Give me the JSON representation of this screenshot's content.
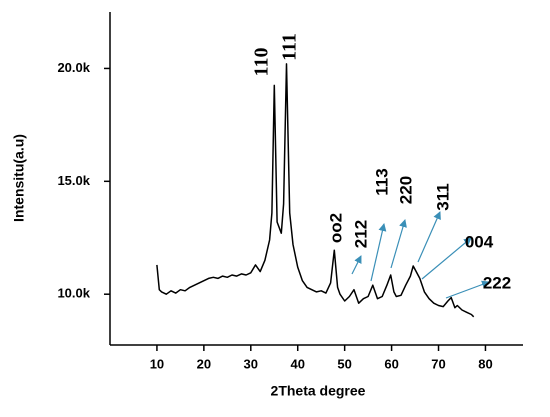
{
  "chart_data": {
    "type": "line",
    "x_label": "2Theta degree",
    "y_label": "Intensitu(a.u)",
    "xlim": [
      0,
      88
    ],
    "ylim": [
      7750,
      22500
    ],
    "xticks": [
      10,
      20,
      30,
      40,
      50,
      60,
      70,
      80
    ],
    "yticks": [
      {
        "value": 10000,
        "label": "10.0k"
      },
      {
        "value": 15000,
        "label": "15.0k"
      },
      {
        "value": 20000,
        "label": "20.0k"
      }
    ],
    "color": "#000000",
    "annotation_color": "#3a8fb7",
    "x": [
      10,
      10.5,
      11,
      12,
      13,
      14,
      15,
      16,
      17,
      18,
      19,
      20,
      21,
      22,
      23,
      24,
      25,
      26,
      27,
      28,
      29,
      30,
      31,
      32,
      33,
      34,
      34.5,
      35,
      35.6,
      36.5,
      37,
      37.6,
      38.3,
      39,
      40,
      41,
      42,
      43,
      44,
      45,
      46,
      47,
      47.8,
      48.5,
      49,
      50,
      51,
      52,
      53,
      54,
      55,
      56,
      57,
      58,
      59,
      59.8,
      60.5,
      61,
      62,
      63,
      64,
      64.6,
      65.5,
      66,
      67,
      68,
      69,
      70,
      71,
      72,
      72.7,
      73.5,
      74,
      75,
      76,
      77,
      77.5
    ],
    "values": [
      11300,
      10200,
      10100,
      10000,
      10150,
      10050,
      10200,
      10150,
      10300,
      10400,
      10500,
      10600,
      10700,
      10750,
      10700,
      10800,
      10750,
      10850,
      10800,
      10900,
      10850,
      10950,
      11300,
      11000,
      11500,
      12400,
      13600,
      19250,
      13200,
      12700,
      14000,
      20200,
      13600,
      12200,
      11200,
      10600,
      10300,
      10200,
      10100,
      10150,
      10050,
      10500,
      11950,
      10300,
      10000,
      9700,
      9900,
      10200,
      9600,
      9800,
      9900,
      10400,
      9800,
      9900,
      10400,
      10850,
      10100,
      9900,
      9950,
      10400,
      10800,
      11250,
      10900,
      10700,
      10100,
      9800,
      9600,
      9500,
      9450,
      9700,
      9850,
      9400,
      9500,
      9300,
      9200,
      9100,
      9000
    ],
    "annotations": [
      "110",
      "111",
      "oo2",
      "212",
      "113",
      "220",
      "311",
      "004",
      "222"
    ]
  }
}
